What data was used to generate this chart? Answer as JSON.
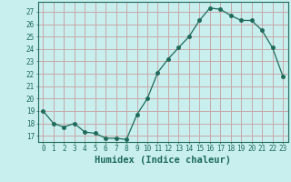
{
  "x": [
    0,
    1,
    2,
    3,
    4,
    5,
    6,
    7,
    8,
    9,
    10,
    11,
    12,
    13,
    14,
    15,
    16,
    17,
    18,
    19,
    20,
    21,
    22,
    23
  ],
  "y": [
    19,
    18,
    17.7,
    18,
    17.3,
    17.2,
    16.8,
    16.8,
    16.7,
    18.7,
    20,
    22.1,
    23.2,
    24.1,
    25,
    26.3,
    27.3,
    27.2,
    26.7,
    26.3,
    26.3,
    25.5,
    24.1,
    21.8
  ],
  "line_color": "#1e6b5a",
  "bg_color": "#c8eeee",
  "grid_color": "#c8a8a8",
  "xlabel": "Humidex (Indice chaleur)",
  "ylim": [
    16.5,
    27.8
  ],
  "xlim": [
    -0.5,
    23.5
  ],
  "yticks": [
    17,
    18,
    19,
    20,
    21,
    22,
    23,
    24,
    25,
    26,
    27
  ],
  "xticks": [
    0,
    1,
    2,
    3,
    4,
    5,
    6,
    7,
    8,
    9,
    10,
    11,
    12,
    13,
    14,
    15,
    16,
    17,
    18,
    19,
    20,
    21,
    22,
    23
  ],
  "tick_fontsize": 5.5,
  "label_fontsize": 7.5,
  "marker_size": 2.5,
  "linewidth": 0.9
}
